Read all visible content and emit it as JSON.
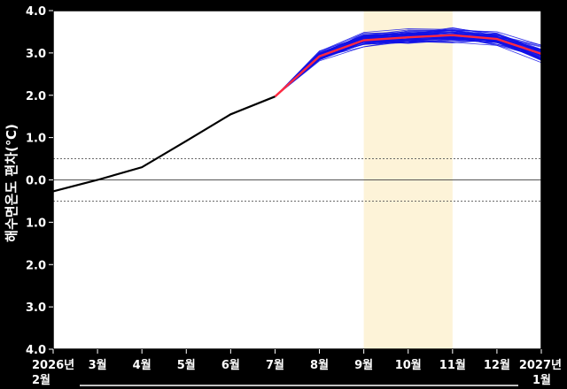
{
  "chart_data": {
    "type": "line",
    "ylabel": "해수면온도 편차(℃)",
    "ylim": [
      -4.0,
      4.0
    ],
    "y_ticks": [
      "4.0",
      "3.0",
      "2.0",
      "1.0",
      "0.0",
      "1.0",
      "2.0",
      "3.0",
      "4.0"
    ],
    "x_ticks": [
      {
        "line1": "2026년",
        "line2": "2월"
      },
      {
        "line1": "3월",
        "line2": ""
      },
      {
        "line1": "4월",
        "line2": ""
      },
      {
        "line1": "5월",
        "line2": ""
      },
      {
        "line1": "6월",
        "line2": ""
      },
      {
        "line1": "7월",
        "line2": ""
      },
      {
        "line1": "8월",
        "line2": ""
      },
      {
        "line1": "9월",
        "line2": ""
      },
      {
        "line1": "10월",
        "line2": ""
      },
      {
        "line1": "11월",
        "line2": ""
      },
      {
        "line1": "12월",
        "line2": ""
      },
      {
        "line1": "2027년",
        "line2": "1월"
      }
    ],
    "threshold_lines": [
      0.5,
      0.0,
      -0.5
    ],
    "highlight_range": [
      7,
      9
    ],
    "observed": {
      "x": [
        0,
        1,
        2,
        3,
        4,
        5
      ],
      "values": [
        -0.27,
        0.0,
        0.3,
        0.92,
        1.55,
        1.97
      ]
    },
    "ensemble_mean": {
      "x": [
        5,
        6,
        7,
        8,
        9,
        10,
        11
      ],
      "values": [
        1.97,
        2.92,
        3.3,
        3.37,
        3.42,
        3.33,
        2.98
      ]
    },
    "ensemble_spread": {
      "x": [
        5,
        6,
        7,
        8,
        9,
        10,
        11
      ],
      "min": [
        1.97,
        2.78,
        3.1,
        3.17,
        3.2,
        3.15,
        2.75
      ],
      "max": [
        1.97,
        3.07,
        3.52,
        3.58,
        3.62,
        3.52,
        3.2
      ]
    },
    "ensemble_members": 60,
    "grid": false,
    "legend": "none",
    "colors": {
      "observed": "#000000",
      "ensemble": "#1010e6",
      "mean": "#ff2a40",
      "highlight": "#fdf3d8",
      "threshold": "#555555",
      "background": "#000000",
      "plot_background": "#ffffff"
    }
  }
}
